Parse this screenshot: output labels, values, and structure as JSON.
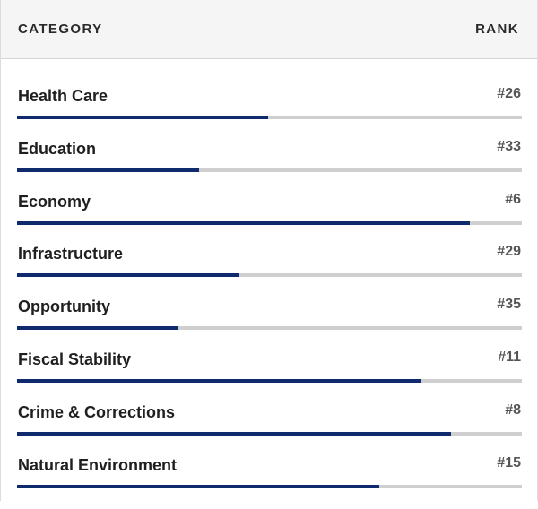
{
  "header": {
    "category_label": "CATEGORY",
    "rank_label": "RANK"
  },
  "colors": {
    "bar_fill": "#0f2b6e",
    "bar_track": "#cfcfcf"
  },
  "chart_data": {
    "type": "bar",
    "orientation": "horizontal",
    "categories": [
      "Health Care",
      "Education",
      "Economy",
      "Infrastructure",
      "Opportunity",
      "Fiscal Stability",
      "Crime & Corrections",
      "Natural Environment"
    ],
    "ranks": [
      "#26",
      "#33",
      "#6",
      "#29",
      "#35",
      "#11",
      "#8",
      "#15"
    ],
    "values": [
      0.498,
      0.36,
      0.897,
      0.44,
      0.32,
      0.8,
      0.86,
      0.718
    ],
    "xlim": [
      0,
      1
    ]
  }
}
